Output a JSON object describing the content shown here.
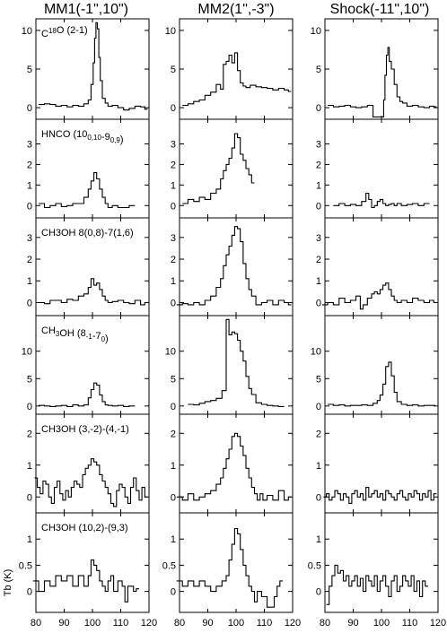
{
  "chart_data": {
    "type": "line",
    "steps": true,
    "columns": [
      "MM1(-1\",10\")",
      "MM2(1\",-3\")",
      "Shock(-11\",10\")"
    ],
    "rows": [
      {
        "label": "C<sup>18</sup>O (2-1)",
        "ylim": [
          -1.5,
          11.5
        ],
        "yticks": [
          0,
          5,
          10
        ]
      },
      {
        "label": "HNCO (10<sub>0,10</sub>-9<sub>0,9</sub>)",
        "ylim": [
          -0.6,
          4.2
        ],
        "yticks": [
          0,
          1,
          2,
          3
        ]
      },
      {
        "label": "CH3OH 8(0,8)-7(1,6)",
        "ylim": [
          -0.6,
          3.9
        ],
        "yticks": [
          0,
          1,
          2,
          3
        ]
      },
      {
        "label": "CH<sub>3</sub>OH (8<sub>-1</sub>-7<sub>0</sub>)",
        "ylim": [
          -1.5,
          16.5
        ],
        "yticks": [
          0,
          5,
          10
        ]
      },
      {
        "label": "CH3OH (3,-2)-(4,-1)",
        "ylim": [
          -0.5,
          2.6
        ],
        "yticks": [
          0,
          1,
          2
        ]
      },
      {
        "label": "CH3OH (10,2)-(9,3)",
        "ylim": [
          -0.4,
          1.5
        ],
        "yticks": [
          0,
          0.5,
          1
        ]
      }
    ],
    "xlim": [
      80,
      120
    ],
    "xticks": [
      80,
      90,
      100,
      110,
      120
    ],
    "xlabel": "Velocity (km/s)",
    "ylabel": "Tb (K)",
    "series": [
      [
        {
          "x": [
            82,
            84,
            86,
            88,
            90,
            92,
            94,
            96,
            98,
            99,
            100,
            100.5,
            101,
            101.5,
            102,
            102.5,
            103,
            104,
            105,
            106,
            108,
            110,
            112,
            114,
            116,
            118,
            119
          ],
          "y": [
            0.4,
            0.5,
            0.4,
            0.2,
            0.3,
            0.1,
            0.3,
            0.2,
            0.5,
            1.0,
            3.0,
            5.8,
            9.0,
            11.0,
            10.2,
            6.5,
            3.5,
            1.2,
            0.6,
            0.2,
            0.3,
            0.0,
            -0.3,
            -0.1,
            0.2,
            0.1,
            -0.2
          ]
        },
        {
          "x": [
            82,
            84,
            86,
            88,
            90,
            92,
            94,
            96,
            98,
            99,
            100,
            101,
            102,
            103,
            104,
            105,
            106,
            108,
            110,
            112,
            114
          ],
          "y": [
            0.1,
            -0.1,
            0.0,
            0.1,
            -0.05,
            0.0,
            0.1,
            0.1,
            0.4,
            0.8,
            1.2,
            1.6,
            1.3,
            0.8,
            0.4,
            0.1,
            -0.1,
            0.0,
            -0.1,
            -0.1,
            0.0
          ]
        },
        {
          "x": [
            82,
            84,
            86,
            88,
            90,
            92,
            94,
            96,
            98,
            99,
            100,
            101,
            102,
            103,
            104,
            105,
            106,
            108,
            110,
            112,
            114,
            116,
            118,
            119
          ],
          "y": [
            0.0,
            -0.05,
            0.1,
            0.1,
            0.0,
            0.15,
            0.1,
            0.3,
            0.4,
            0.7,
            1.1,
            0.8,
            0.9,
            0.6,
            0.3,
            0.1,
            0.0,
            0.05,
            0.1,
            0.0,
            -0.05,
            0.1,
            -0.1,
            0.0
          ]
        },
        {
          "x": [
            82,
            84,
            86,
            88,
            90,
            92,
            94,
            96,
            98,
            99,
            100,
            101,
            102,
            103,
            104,
            105,
            106,
            108,
            110,
            112,
            114
          ],
          "y": [
            0.1,
            0.0,
            -0.1,
            0.0,
            0.1,
            -0.1,
            0.2,
            0.0,
            0.2,
            1.5,
            3.0,
            4.2,
            3.8,
            2.0,
            0.8,
            0.2,
            0.1,
            0.0,
            0.1,
            -0.1,
            0.0
          ]
        },
        {
          "x": [
            80,
            81,
            82,
            83,
            84,
            85,
            86,
            87,
            88,
            89,
            90,
            91,
            92,
            93,
            94,
            95,
            96,
            97,
            98,
            99,
            100,
            101,
            102,
            103,
            104,
            105,
            106,
            107,
            108,
            109,
            110,
            111,
            112,
            113,
            114,
            115,
            116,
            117,
            118,
            119
          ],
          "y": [
            0.6,
            0.3,
            0.1,
            0.5,
            0.4,
            0.0,
            -0.2,
            0.3,
            0.5,
            0.1,
            -0.1,
            0.2,
            0.0,
            0.3,
            0.5,
            0.4,
            0.3,
            0.7,
            0.9,
            1.0,
            1.2,
            1.1,
            1.0,
            0.7,
            0.5,
            0.3,
            0.1,
            -0.2,
            -0.3,
            0.2,
            0.4,
            0.3,
            0.0,
            -0.2,
            0.3,
            0.6,
            0.2,
            -0.1,
            0.3,
            0.0
          ]
        },
        {
          "x": [
            80,
            82,
            84,
            86,
            88,
            90,
            92,
            94,
            96,
            98,
            99,
            100,
            101,
            102,
            103,
            104,
            105,
            106,
            107,
            108,
            110,
            111,
            112,
            113,
            114,
            115,
            116
          ],
          "y": [
            0.2,
            0.0,
            0.2,
            0.1,
            0.3,
            0.2,
            0.3,
            0.1,
            0.3,
            0.1,
            0.3,
            0.6,
            0.5,
            0.4,
            0.2,
            0.1,
            0.0,
            0.2,
            0.3,
            0.0,
            0.2,
            0.1,
            -0.2,
            0.1,
            0.1,
            0.0,
            0.05
          ]
        }
      ],
      [
        {
          "x": [
            82,
            84,
            86,
            88,
            90,
            92,
            94,
            95,
            96,
            97,
            98,
            99,
            100,
            101,
            102,
            103,
            104,
            106,
            108,
            110,
            112,
            114,
            116,
            118,
            119
          ],
          "y": [
            0.3,
            0.5,
            0.8,
            1.0,
            1.6,
            2.0,
            3.0,
            2.4,
            5.6,
            6.0,
            6.8,
            5.8,
            7.1,
            4.8,
            3.2,
            2.8,
            2.6,
            2.9,
            2.7,
            2.6,
            2.5,
            2.3,
            2.5,
            2.3,
            2.1
          ]
        },
        {
          "x": [
            82,
            84,
            86,
            88,
            90,
            92,
            94,
            95,
            96,
            97,
            98,
            99,
            100,
            101,
            102,
            103,
            104,
            105,
            106
          ],
          "y": [
            0.1,
            0.3,
            0.2,
            0.4,
            0.3,
            0.6,
            0.8,
            1.3,
            1.7,
            2.0,
            2.3,
            2.8,
            3.5,
            3.3,
            2.5,
            2.2,
            1.8,
            1.5,
            1.1
          ]
        },
        {
          "x": [
            80,
            82,
            84,
            86,
            88,
            90,
            92,
            94,
            95,
            96,
            97,
            98,
            99,
            100,
            101,
            102,
            103,
            104,
            105,
            106,
            108,
            110,
            112,
            114,
            116,
            118,
            119
          ],
          "y": [
            -0.1,
            -0.05,
            -0.1,
            0.0,
            -0.1,
            0.1,
            0.3,
            0.7,
            1.1,
            1.7,
            2.2,
            2.6,
            3.1,
            3.5,
            3.4,
            2.8,
            1.8,
            1.1,
            0.6,
            0.3,
            -0.1,
            0.0,
            0.1,
            -0.1,
            0.1,
            0.0,
            -0.1
          ]
        },
        {
          "x": [
            84,
            86,
            88,
            90,
            92,
            94,
            96,
            97,
            98,
            99,
            100,
            101,
            102,
            103,
            104,
            105,
            106,
            108,
            110,
            112,
            114,
            116
          ],
          "y": [
            0.3,
            0.2,
            0.5,
            0.8,
            1.0,
            1.4,
            2.8,
            15.8,
            13.0,
            13.5,
            13.2,
            12.0,
            10.0,
            8.2,
            5.4,
            3.2,
            2.1,
            0.6,
            0.3,
            0.1,
            0.0,
            -0.1
          ]
        },
        {
          "x": [
            80,
            82,
            84,
            86,
            88,
            90,
            92,
            94,
            95,
            96,
            97,
            98,
            99,
            100,
            101,
            102,
            103,
            104,
            105,
            106,
            107,
            108,
            109,
            110,
            112,
            114,
            116,
            118,
            119
          ],
          "y": [
            0.0,
            -0.1,
            0.1,
            -0.1,
            0.0,
            0.1,
            0.2,
            0.4,
            0.6,
            0.9,
            1.2,
            1.5,
            1.9,
            2.0,
            1.9,
            1.6,
            1.3,
            0.9,
            0.6,
            0.3,
            0.1,
            -0.1,
            0.1,
            -0.1,
            0.05,
            -0.1,
            0.2,
            -0.1,
            0.0
          ]
        },
        {
          "x": [
            80,
            82,
            84,
            86,
            88,
            90,
            92,
            94,
            96,
            97,
            98,
            99,
            100,
            101,
            102,
            103,
            104,
            105,
            106,
            107,
            108,
            110,
            112,
            113,
            114,
            115,
            116
          ],
          "y": [
            0.2,
            0.1,
            0.2,
            0.1,
            0.2,
            0.1,
            0.0,
            0.1,
            0.2,
            0.3,
            0.6,
            0.9,
            1.2,
            1.1,
            0.8,
            0.5,
            0.3,
            0.1,
            0.0,
            -0.2,
            0.0,
            -0.1,
            -0.3,
            -0.3,
            -0.1,
            0.1,
            0.2
          ]
        }
      ],
      [
        {
          "x": [
            82,
            84,
            86,
            88,
            90,
            92,
            94,
            96,
            98,
            99,
            99.5,
            100,
            100.5,
            101,
            101.5,
            102,
            102.5,
            103,
            104,
            105,
            106,
            107,
            108,
            110,
            112,
            114,
            116,
            118,
            119
          ],
          "y": [
            0.3,
            0.1,
            0.2,
            0.3,
            0.1,
            0.0,
            0.1,
            0.3,
            -1.2,
            -1.2,
            -1.2,
            -1.2,
            -1.2,
            1.0,
            4.2,
            6.8,
            7.8,
            6.0,
            5.0,
            3.0,
            1.4,
            0.8,
            0.6,
            0.2,
            0.3,
            0.1,
            0.0,
            0.2,
            0.1
          ]
        },
        {
          "x": [
            84,
            86,
            88,
            90,
            92,
            94,
            95,
            96,
            97,
            98,
            99,
            100,
            101,
            102,
            103,
            104,
            105,
            106,
            108,
            110,
            112,
            114,
            116
          ],
          "y": [
            0.0,
            0.1,
            0.0,
            0.05,
            0.0,
            0.2,
            0.6,
            0.3,
            -0.1,
            0.0,
            0.2,
            0.3,
            0.1,
            0.0,
            0.05,
            0.1,
            0.0,
            0.1,
            0.0,
            0.05,
            0.1,
            0.0,
            0.1
          ]
        },
        {
          "x": [
            80,
            82,
            84,
            86,
            88,
            90,
            92,
            93,
            94,
            96,
            97,
            98,
            99,
            100,
            101,
            102,
            103,
            104,
            105,
            106,
            108,
            110,
            112,
            114,
            116,
            118,
            119
          ],
          "y": [
            -0.1,
            0.0,
            -0.1,
            0.2,
            0.0,
            0.1,
            0.3,
            -0.3,
            -0.1,
            0.2,
            0.4,
            0.5,
            0.4,
            0.6,
            0.8,
            0.9,
            0.6,
            0.3,
            0.1,
            0.0,
            0.1,
            0.0,
            0.2,
            0.1,
            0.0,
            0.1,
            0.0
          ]
        },
        {
          "x": [
            82,
            84,
            86,
            88,
            90,
            92,
            94,
            96,
            98,
            99,
            100,
            101,
            102,
            103,
            104,
            105,
            106,
            108,
            110,
            112,
            114,
            116,
            118
          ],
          "y": [
            0.3,
            0.1,
            0.2,
            0.0,
            0.1,
            0.1,
            0.2,
            0.1,
            0.5,
            1.0,
            2.0,
            4.0,
            7.2,
            8.0,
            5.5,
            2.5,
            0.8,
            0.3,
            0.1,
            0.2,
            0.0,
            0.1,
            0.1
          ]
        },
        {
          "x": [
            80,
            81,
            82,
            83,
            84,
            85,
            86,
            87,
            88,
            89,
            90,
            91,
            92,
            93,
            94,
            95,
            96,
            97,
            98,
            99,
            100,
            101,
            102,
            103,
            104,
            105,
            106,
            107,
            108,
            109,
            110,
            111,
            112,
            113,
            114,
            115,
            116,
            117,
            118,
            119
          ],
          "y": [
            0.0,
            0.1,
            -0.1,
            0.0,
            0.2,
            0.1,
            -0.1,
            0.1,
            0.0,
            -0.2,
            0.1,
            0.2,
            0.0,
            0.1,
            -0.1,
            0.3,
            0.0,
            0.1,
            0.2,
            0.0,
            0.1,
            -0.1,
            0.2,
            0.1,
            0.0,
            -0.1,
            0.1,
            0.2,
            0.0,
            -0.1,
            0.1,
            0.0,
            0.2,
            0.1,
            -0.1,
            0.1,
            0.0,
            0.2,
            -0.1,
            0.1
          ]
        },
        {
          "x": [
            81,
            82,
            83,
            84,
            85,
            86,
            87,
            88,
            89,
            90,
            91,
            92,
            93,
            94,
            95,
            96,
            97,
            98,
            99,
            100,
            101,
            102,
            103,
            104,
            105,
            106,
            107,
            108,
            109,
            110,
            111,
            112,
            113,
            114,
            115,
            116
          ],
          "y": [
            -0.25,
            0.1,
            0.3,
            0.5,
            0.35,
            0.4,
            0.2,
            0.3,
            0.1,
            0.2,
            0.3,
            0.1,
            0.25,
            0.0,
            0.3,
            0.2,
            0.1,
            0.3,
            0.0,
            0.2,
            0.3,
            0.1,
            -0.1,
            0.2,
            0.3,
            0.0,
            0.1,
            0.3,
            0.2,
            0.1,
            0.3,
            0.0,
            0.2,
            -0.1,
            0.2,
            0.1
          ]
        }
      ]
    ]
  }
}
